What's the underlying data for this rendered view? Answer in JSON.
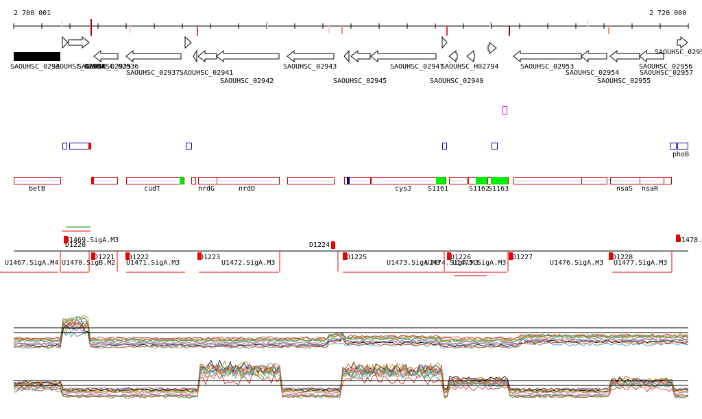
{
  "ruler": {
    "start": "2 700 001",
    "end": "2 720 000"
  },
  "genes": [
    "SAOUHSC_0293",
    "SAOUHSC_02934",
    "SAOUHSC_02935",
    "SAOUHSC_02936",
    "SAOUHSC_02937",
    "SAOUHSC_02941",
    "SAOUHSC_02942",
    "SAOUHSC_02943",
    "SAOUHSC_02945",
    "SAOUHSC_02947",
    "SAOUHSC_02949",
    "SAOUHSC_H02794",
    "SAOUHSC_02953",
    "SAOUHSC_02954",
    "SAOUHSC_02955",
    "SAOUHSC_02956",
    "SAOUHSC_02957",
    "SAOUHSC_0295"
  ],
  "regulators": [
    "phoB"
  ],
  "features": [
    "betB",
    "cudT",
    "nrdG",
    "nrdD",
    "cysJ",
    "S1161",
    "S1162",
    "S1163",
    "nsaS",
    "nsaR"
  ],
  "transcripts": [
    "U1469.SigA.M3",
    "D1220",
    "D1221",
    "D1222",
    "D1223",
    "D1224",
    "D1225",
    "D1226",
    "D1227",
    "D1228",
    "U1478.",
    "U1467.SigA.M4",
    "U1470.SigB.M2",
    "U1471.SigA.M3",
    "U1472.SigA.M3",
    "U1473.SigA.M3",
    "U1474.SigA.M3",
    "U1475.SigA.M3",
    "U1476.SigA.M3",
    "U1477.SigA.M3"
  ]
}
